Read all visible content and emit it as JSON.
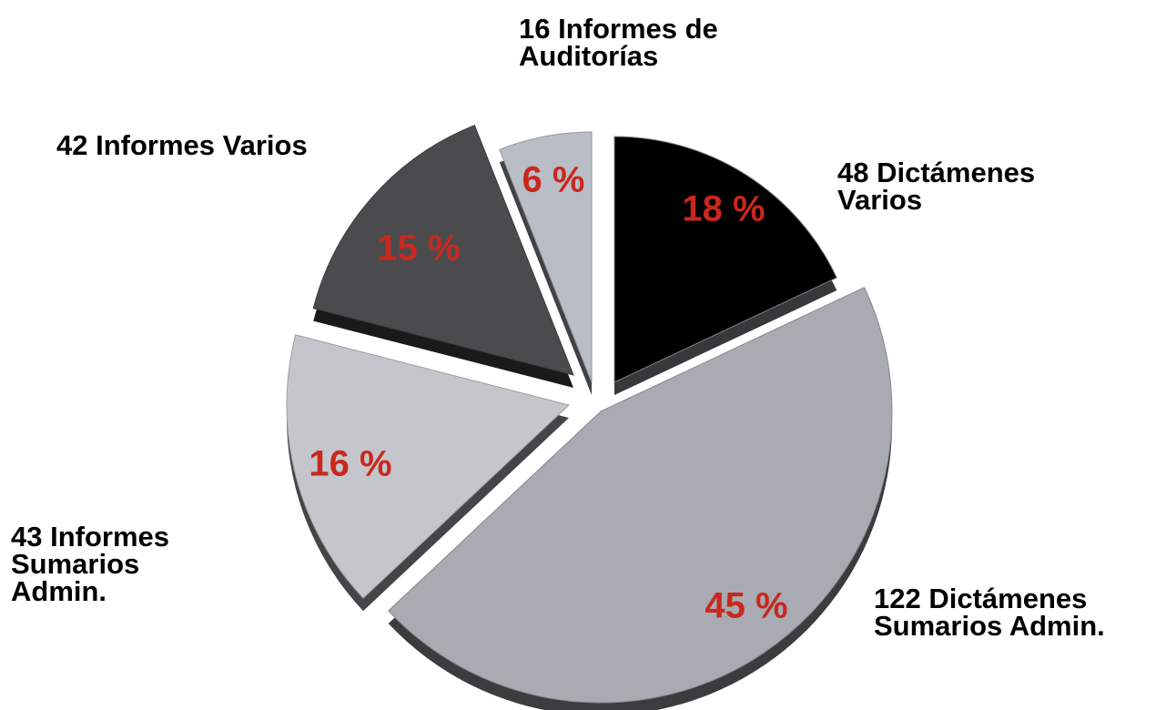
{
  "chart_data": {
    "type": "pie",
    "categories": [
      [
        "48 Dictámenes",
        "Varios"
      ],
      [
        "122 Dictámenes",
        "Sumarios Admin."
      ],
      [
        "43 Informes",
        "Sumarios",
        "Admin."
      ],
      [
        "42 Informes Varios"
      ],
      [
        "16 Informes de",
        "Auditorías"
      ]
    ],
    "values": [
      18,
      45,
      16,
      15,
      6
    ],
    "value_labels": [
      "18 %",
      "45 %",
      "16 %",
      "15 %",
      "6 %"
    ],
    "colors": [
      "#9c a0a6",
      "#a8abb1",
      "#c4c6cb",
      "#4b4b4e",
      "#b9bdc5"
    ]
  }
}
